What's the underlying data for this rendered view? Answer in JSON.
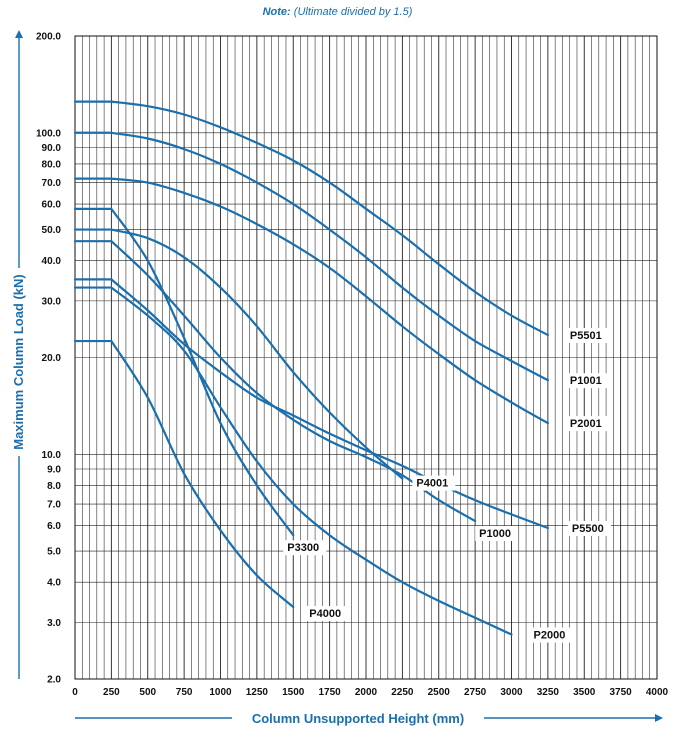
{
  "note": {
    "label": "Note:",
    "text": "(Ultimate divided by 1.5)"
  },
  "chart_data": {
    "type": "line",
    "xlabel": "Column Unsupported Height (mm)",
    "ylabel": "Maximum Column Load (kN)",
    "xlim": [
      0,
      4000
    ],
    "ylim": [
      2.0,
      200.0
    ],
    "yscale": "log",
    "grid": true,
    "x_ticks": [
      0,
      250,
      500,
      750,
      1000,
      1250,
      1500,
      1750,
      2000,
      2250,
      2500,
      2750,
      3000,
      3250,
      3500,
      3750,
      4000
    ],
    "x_tick_labels": [
      "0",
      "250",
      "500",
      "750",
      "1000",
      "1250",
      "1500",
      "1750",
      "2000",
      "2250",
      "2500",
      "2750",
      "3000",
      "3250",
      "3500",
      "3750",
      "4000"
    ],
    "y_ticks": [
      2,
      3,
      4,
      5,
      6,
      7,
      8,
      9,
      10,
      20,
      30,
      40,
      50,
      60,
      70,
      80,
      90,
      100,
      200
    ],
    "y_tick_labels": [
      "2.0",
      "3.0",
      "4.0",
      "5.0",
      "6.0",
      "7.0",
      "8.0",
      "9.0",
      "10.0",
      "20.0",
      "30.0",
      "40.0",
      "50.0",
      "60.0",
      "70.0",
      "80.0",
      "90.0",
      "100.0",
      "200.0"
    ],
    "line_color": "#1a6fae",
    "series": [
      {
        "name": "P5501",
        "x": [
          0,
          250,
          500,
          750,
          1000,
          1250,
          1500,
          1750,
          2000,
          2250,
          2500,
          2750,
          3000,
          3250
        ],
        "values": [
          125,
          125,
          121,
          114,
          104,
          93,
          82,
          70,
          58,
          48,
          39,
          32,
          27,
          23.5
        ]
      },
      {
        "name": "P1001",
        "x": [
          0,
          250,
          500,
          750,
          1000,
          1250,
          1500,
          1750,
          2000,
          2250,
          2500,
          2750,
          3000,
          3250
        ],
        "values": [
          100,
          100,
          96,
          89,
          80,
          70,
          60,
          50,
          41,
          33,
          27,
          22.5,
          19.5,
          17
        ]
      },
      {
        "name": "P2001",
        "x": [
          0,
          250,
          500,
          750,
          1000,
          1250,
          1500,
          1750,
          2000,
          2250,
          2500,
          2750,
          3000,
          3250
        ],
        "values": [
          72,
          72,
          70,
          65,
          59,
          52,
          45,
          38,
          31,
          25,
          20.5,
          17,
          14.5,
          12.5
        ]
      },
      {
        "name": "P4001",
        "x": [
          0,
          250,
          500,
          750,
          1000,
          1250,
          1500,
          1750,
          2000,
          2250
        ],
        "values": [
          50,
          50,
          47,
          41,
          33,
          25,
          18,
          13.5,
          10.5,
          8.4
        ]
      },
      {
        "name": "P1000",
        "x": [
          0,
          250,
          500,
          750,
          1000,
          1250,
          1500,
          1750,
          2000,
          2250,
          2500,
          2750
        ],
        "values": [
          46,
          46,
          36,
          27,
          20,
          15.5,
          12.8,
          11,
          9.8,
          8.6,
          7.2,
          6.2
        ]
      },
      {
        "name": "P5500",
        "x": [
          0,
          250,
          500,
          750,
          1000,
          1250,
          1500,
          1750,
          2000,
          2250,
          2500,
          2750,
          3000,
          3250
        ],
        "values": [
          35,
          35,
          28,
          22,
          18,
          15,
          13.2,
          11.6,
          10.3,
          9.2,
          8.1,
          7.2,
          6.5,
          5.9
        ]
      },
      {
        "name": "P3300",
        "x": [
          0,
          250,
          500,
          750,
          1000,
          1250,
          1500
        ],
        "values": [
          58,
          58,
          40,
          23,
          12.5,
          8,
          5.6
        ]
      },
      {
        "name": "P2000",
        "x": [
          0,
          250,
          500,
          750,
          1000,
          1250,
          1500,
          1750,
          2000,
          2250,
          2500,
          2750,
          3000
        ],
        "values": [
          33,
          33,
          27,
          21,
          14,
          9.5,
          7,
          5.6,
          4.7,
          4.0,
          3.5,
          3.1,
          2.75
        ]
      },
      {
        "name": "P4000",
        "x": [
          0,
          250,
          500,
          750,
          1000,
          1250,
          1500
        ],
        "values": [
          22.5,
          22.5,
          15,
          8.7,
          5.8,
          4.2,
          3.35
        ]
      }
    ]
  }
}
